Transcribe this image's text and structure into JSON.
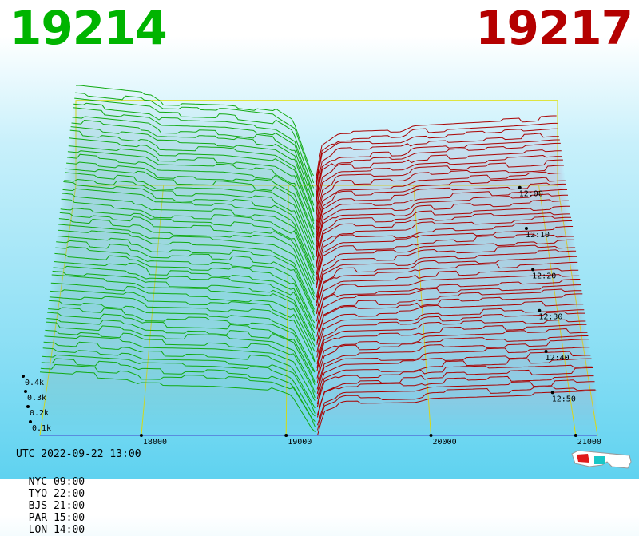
{
  "header": {
    "bid_price": "19214",
    "ask_price": "19217"
  },
  "colors": {
    "bid": "#00b400",
    "ask": "#b40000",
    "bid_lines": "#11aa11",
    "ask_lines": "#aa0000",
    "grid": "#dddd00",
    "base": "#4444cc"
  },
  "footer": {
    "utc": "UTC 2022-09-22 13:00",
    "zones": [
      "NYC 09:00",
      "TYO 22:00",
      "BJS 21:00",
      "PAR 15:00",
      "LON 14:00"
    ]
  },
  "icons": {
    "corner": "3d-glasses-icon"
  },
  "chart_data": {
    "type": "area",
    "x_ticks": [
      "18000",
      "19000",
      "20000",
      "21000"
    ],
    "xlim": [
      17300,
      21150
    ],
    "z_ticks": [
      "0.1k",
      "0.2k",
      "0.3k",
      "0.4k"
    ],
    "zlim": [
      0,
      0.5
    ],
    "time_ticks": [
      "12:00",
      "12:10",
      "12:20",
      "12:30",
      "12:40",
      "12:50"
    ],
    "time_range": [
      "11:58",
      "13:00"
    ],
    "mid_price": 19215,
    "snapshots": 50,
    "bid_depth_profile": [
      {
        "x": 17300,
        "z": 0.48
      },
      {
        "x": 17900,
        "z": 0.44
      },
      {
        "x": 18000,
        "z": 0.4
      },
      {
        "x": 18500,
        "z": 0.39
      },
      {
        "x": 18900,
        "z": 0.36
      },
      {
        "x": 19050,
        "z": 0.3
      },
      {
        "x": 19150,
        "z": 0.12
      },
      {
        "x": 19214,
        "z": 0.0
      }
    ],
    "ask_depth_profile": [
      {
        "x": 19217,
        "z": 0.0
      },
      {
        "x": 19260,
        "z": 0.18
      },
      {
        "x": 19400,
        "z": 0.24
      },
      {
        "x": 19900,
        "z": 0.25
      },
      {
        "x": 20000,
        "z": 0.28
      },
      {
        "x": 20900,
        "z": 0.31
      },
      {
        "x": 21100,
        "z": 0.32
      }
    ]
  }
}
